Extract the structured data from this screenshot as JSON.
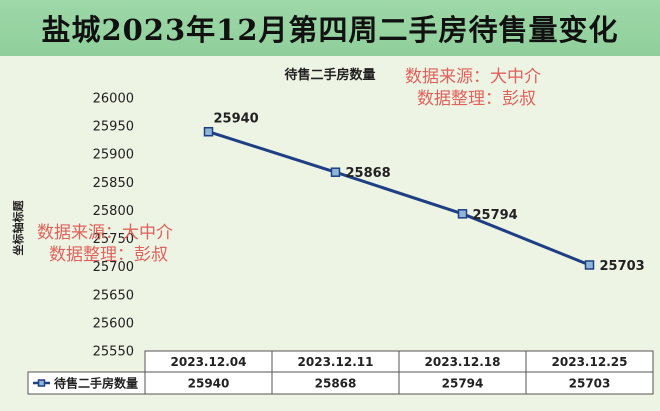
{
  "page_title": "盐城2023年12月第四周二手房待售量变化",
  "watermark": {
    "line1": "数据来源：大中介",
    "line2": "数据整理：彭叔"
  },
  "colors": {
    "title_bg": "#9ed8a8",
    "plot_bg": "#edf4e4",
    "series": "#1f3f84",
    "watermark": "#e0625c"
  },
  "chart_data": {
    "type": "line",
    "title": "待售二手房数量",
    "ylabel": "坐标轴标题",
    "xlabel": "",
    "ylim": [
      25550,
      26000
    ],
    "ytick_step": 50,
    "yticks": [
      "26000",
      "25950",
      "25900",
      "25850",
      "25800",
      "25750",
      "25700",
      "25650",
      "25600",
      "25550"
    ],
    "categories": [
      "2023.12.04",
      "2023.12.11",
      "2023.12.18",
      "2023.12.25"
    ],
    "series": [
      {
        "name": "待售二手房数量",
        "values": [
          25940,
          25868,
          25794,
          25703
        ]
      }
    ],
    "data_table": true,
    "legend": "in data table",
    "grid": false
  }
}
